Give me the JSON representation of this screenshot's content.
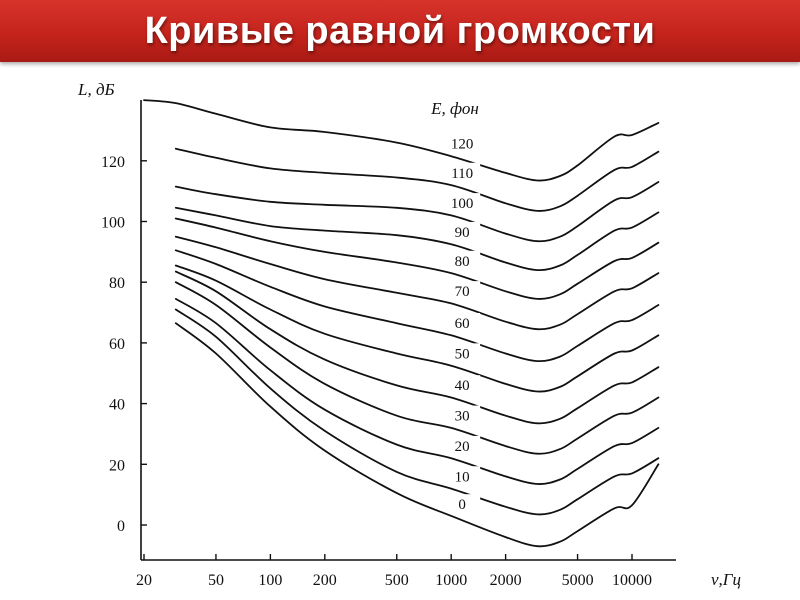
{
  "slide": {
    "title": "Кривые равной громкости"
  },
  "chart_data": {
    "type": "line",
    "title": "",
    "ylabel": "L, дБ",
    "xlabel": "ν,Гц",
    "legend_title": "E, фон",
    "x_scale": "log",
    "x_ticks": [
      20,
      50,
      100,
      200,
      500,
      1000,
      2000,
      5000,
      10000
    ],
    "x_tick_labels": [
      "20",
      "50",
      "100",
      "200",
      "500",
      "1000",
      "2000",
      "5000",
      "10000"
    ],
    "y_ticks": [
      0,
      20,
      40,
      60,
      80,
      100,
      120
    ],
    "y_tick_labels": [
      "0",
      "20",
      "40",
      "60",
      "80",
      "100",
      "120"
    ],
    "xlim": [
      20,
      14000
    ],
    "ylim": [
      -8,
      147
    ],
    "grid": false,
    "series": [
      {
        "name": "120",
        "x": [
          20,
          30,
          50,
          100,
          200,
          500,
          1000,
          2000,
          3000,
          4000,
          5000,
          8000,
          10000,
          14000
        ],
        "y": [
          140,
          139,
          135.5,
          131,
          129.5,
          126,
          121.5,
          116,
          113.5,
          115,
          118.5,
          128,
          128.5,
          132.5
        ]
      },
      {
        "name": "110",
        "x": [
          30,
          50,
          100,
          200,
          500,
          1000,
          2000,
          3000,
          4000,
          5000,
          8000,
          10000,
          14000
        ],
        "y": [
          124,
          121,
          117.5,
          116,
          114.5,
          112,
          106,
          103.5,
          105,
          108.5,
          117,
          118,
          123
        ]
      },
      {
        "name": "100",
        "x": [
          30,
          50,
          100,
          200,
          500,
          1000,
          2000,
          3000,
          4000,
          5000,
          8000,
          10000,
          14000
        ],
        "y": [
          111.5,
          109,
          106.5,
          105.5,
          104.5,
          102,
          96,
          93.5,
          95,
          98.5,
          107,
          108,
          113
        ]
      },
      {
        "name": "90",
        "x": [
          30,
          50,
          100,
          200,
          500,
          1000,
          2000,
          3000,
          4000,
          5000,
          8000,
          10000,
          14000
        ],
        "y": [
          104.5,
          102,
          98.5,
          97,
          95.5,
          92.5,
          86.5,
          84,
          85.5,
          89,
          97,
          98,
          103
        ]
      },
      {
        "name": "80",
        "x": [
          30,
          50,
          100,
          200,
          500,
          1000,
          2000,
          3000,
          4000,
          5000,
          8000,
          10000,
          14000
        ],
        "y": [
          101,
          98,
          93.5,
          90,
          86.5,
          83,
          77,
          74.5,
          76,
          79.5,
          87,
          88,
          93
        ]
      },
      {
        "name": "70",
        "x": [
          30,
          50,
          100,
          200,
          500,
          1000,
          2000,
          3000,
          4000,
          5000,
          8000,
          10000,
          14000
        ],
        "y": [
          95,
          91.5,
          86,
          81,
          76.5,
          73,
          67,
          64.5,
          66,
          69.5,
          77,
          78,
          83
        ]
      },
      {
        "name": "60",
        "x": [
          30,
          50,
          100,
          200,
          500,
          1000,
          2000,
          3000,
          4000,
          5000,
          8000,
          10000,
          14000
        ],
        "y": [
          90.5,
          86,
          78.5,
          72,
          66.5,
          62.5,
          56.5,
          54,
          55.5,
          59,
          66.5,
          67.5,
          72.5
        ]
      },
      {
        "name": "50",
        "x": [
          30,
          50,
          100,
          200,
          500,
          1000,
          2000,
          3000,
          4000,
          5000,
          8000,
          10000,
          14000
        ],
        "y": [
          85.5,
          80.5,
          71,
          63,
          56.5,
          52.5,
          46.5,
          44,
          45.5,
          49,
          56.5,
          57.5,
          62.5
        ]
      },
      {
        "name": "40",
        "x": [
          30,
          50,
          100,
          200,
          500,
          1000,
          2000,
          3000,
          4000,
          5000,
          8000,
          10000,
          14000
        ],
        "y": [
          83.5,
          77,
          64.5,
          54.5,
          46,
          42,
          36,
          33.5,
          35,
          38.5,
          46,
          47,
          52
        ]
      },
      {
        "name": "30",
        "x": [
          30,
          50,
          100,
          200,
          500,
          1000,
          2000,
          3000,
          4000,
          5000,
          8000,
          10000,
          14000
        ],
        "y": [
          80,
          72.5,
          58.5,
          46.5,
          36,
          32,
          26,
          23.5,
          25,
          28.5,
          36,
          37,
          42
        ]
      },
      {
        "name": "20",
        "x": [
          30,
          50,
          100,
          200,
          500,
          1000,
          2000,
          3000,
          4000,
          5000,
          8000,
          10000,
          14000
        ],
        "y": [
          74.5,
          66.5,
          51,
          38,
          26.5,
          22,
          16,
          13.5,
          15,
          18.5,
          26,
          27,
          32
        ]
      },
      {
        "name": "10",
        "x": [
          30,
          50,
          100,
          200,
          500,
          1000,
          2000,
          3000,
          4000,
          5000,
          8000,
          10000,
          14000
        ],
        "y": [
          71,
          62,
          45,
          31,
          17.5,
          12,
          6,
          3.5,
          5,
          8.5,
          16,
          17,
          22
        ]
      },
      {
        "name": "0",
        "x": [
          30,
          50,
          100,
          200,
          500,
          1000,
          2000,
          3000,
          4000,
          5000,
          8000,
          10000,
          14000
        ],
        "y": [
          66.5,
          56.5,
          39,
          24.5,
          10.5,
          3,
          -4,
          -7,
          -5.5,
          -2,
          5.5,
          6.5,
          20
        ]
      }
    ]
  }
}
